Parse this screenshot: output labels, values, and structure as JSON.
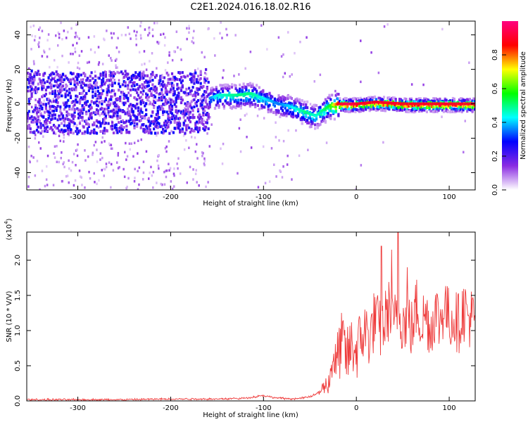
{
  "title": "C2E1.2024.016.18.02.R16",
  "colors": {
    "snr_line": "#ee3b3b",
    "axis": "#000000",
    "background": "#ffffff"
  },
  "chart_data": [
    {
      "type": "heatmap",
      "xlabel": "Height of straight line (km)",
      "ylabel": "Frequency (Hz)",
      "xlim": [
        -355,
        128
      ],
      "ylim": [
        -50,
        48
      ],
      "x_ticks": [
        -300,
        -200,
        -100,
        0,
        100
      ],
      "x_tick_labels": [
        "-300",
        "-200",
        "-100",
        "0",
        "100"
      ],
      "y_ticks": [
        -40,
        -20,
        0,
        20,
        40
      ],
      "y_tick_labels": [
        "-40",
        "-20",
        "0",
        "20",
        "40"
      ],
      "ridge": {
        "x": [
          -355,
          -300,
          -250,
          -200,
          -160,
          -150,
          -130,
          -115,
          -105,
          -95,
          -85,
          -75,
          -65,
          -55,
          -45,
          -38,
          -30,
          -20,
          -10,
          0,
          20,
          50,
          80,
          100,
          128
        ],
        "freq": [
          2,
          1,
          2,
          1,
          3,
          5,
          5,
          6,
          4,
          2,
          0,
          -1,
          -3,
          -5,
          -7,
          -4,
          -1,
          0,
          0,
          0,
          1,
          0,
          0,
          0,
          0
        ],
        "amplitude": [
          0.2,
          0.2,
          0.22,
          0.25,
          0.35,
          0.45,
          0.5,
          0.5,
          0.45,
          0.4,
          0.35,
          0.4,
          0.45,
          0.5,
          0.45,
          0.5,
          0.55,
          0.9,
          0.95,
          0.9,
          0.9,
          0.9,
          0.9,
          0.9,
          0.9
        ]
      },
      "colorbar": {
        "label": "Normalized spectral amplitude",
        "range": [
          0.0,
          1.0
        ],
        "ticks": [
          0.0,
          0.2,
          0.4,
          0.6,
          0.8
        ],
        "tick_labels": [
          "0.0",
          "0.2",
          "0.4",
          "0.6",
          "0.8"
        ],
        "colormap": [
          "#ffffff",
          "#8a2be2",
          "#0000ff",
          "#00ffff",
          "#00ff00",
          "#ffff00",
          "#ff0000",
          "#ff0080"
        ]
      },
      "grid": false
    },
    {
      "type": "line",
      "xlabel": "Height of straight line (km)",
      "ylabel": "SNR (10 * V/V)",
      "yscale_label": "(x10",
      "yscale_exp": "4",
      "yscale_close": ")",
      "xlim": [
        -355,
        128
      ],
      "ylim": [
        0,
        2.4
      ],
      "x_ticks": [
        -300,
        -200,
        -100,
        0,
        100
      ],
      "x_tick_labels": [
        "-300",
        "-200",
        "-100",
        "0",
        "100"
      ],
      "y_ticks": [
        0.0,
        0.5,
        1.0,
        1.5,
        2.0
      ],
      "y_tick_labels": [
        "0.0",
        "0.5",
        "1.0",
        "1.5",
        "2.0"
      ],
      "series": [
        {
          "color": "#ee3b3b",
          "x": [
            -355,
            -300,
            -250,
            -200,
            -150,
            -120,
            -110,
            -100,
            -90,
            -80,
            -70,
            -60,
            -50,
            -40,
            -35,
            -30,
            -27,
            -25,
            -22,
            -20,
            -15,
            -10,
            -5,
            0,
            5,
            10,
            15,
            20,
            25,
            30,
            35,
            40,
            45,
            50,
            55,
            60,
            65,
            70,
            75,
            80,
            85,
            90,
            95,
            100,
            105,
            110,
            115,
            120,
            128
          ],
          "y": [
            0.01,
            0.01,
            0.01,
            0.02,
            0.02,
            0.03,
            0.05,
            0.07,
            0.04,
            0.03,
            0.02,
            0.03,
            0.05,
            0.12,
            0.2,
            0.25,
            0.45,
            0.7,
            0.5,
            0.65,
            0.85,
            0.6,
            0.8,
            0.7,
            0.9,
            1.0,
            0.9,
            1.2,
            1.0,
            1.1,
            1.3,
            1.0,
            1.4,
            1.1,
            1.2,
            1.0,
            1.35,
            1.1,
            1.25,
            1.0,
            1.3,
            1.1,
            1.4,
            1.15,
            1.2,
            1.1,
            1.3,
            1.2,
            1.15
          ],
          "spike_peaks": [
            {
              "x": 27,
              "y": 2.2
            },
            {
              "x": 38,
              "y": 2.15
            },
            {
              "x": 45,
              "y": 2.4
            },
            {
              "x": 55,
              "y": 1.9
            },
            {
              "x": 98,
              "y": 1.63
            },
            {
              "x": 118,
              "y": 1.55
            }
          ]
        }
      ],
      "grid": false
    }
  ]
}
